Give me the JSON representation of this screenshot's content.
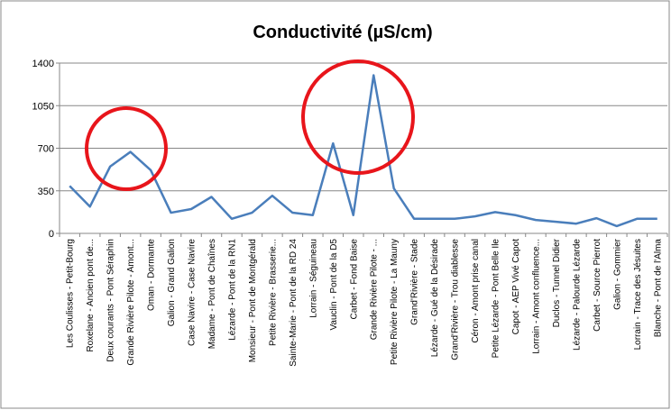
{
  "chart_data": {
    "type": "line",
    "title": "Conductivité (µS/cm)",
    "categories": [
      "Les Coulisses - Petit-Bourg",
      "Roxelane - Ancien pont de...",
      "Deux courants - Pont Séraphin",
      "Grande Rivière Pilote - Amont...",
      "Oman - Dormante",
      "Galion - Grand Galion",
      "Case Navire - Case Navire",
      "Madame - Pont de Chaînes",
      "Lézarde - Pont de la RN1",
      "Monsieur - Pont de Montgérald",
      "Petite Rivière - Brasserie...",
      "Sainte-Marie - Pont de la RD 24",
      "Lorrain - Séguineau",
      "Vauclin - Pont de la D5",
      "Carbet - Fond Baise",
      "Grande Rivière Pilote - ...",
      "Petite Rivière Pilote - La Mauny",
      "Grand'Rivière - Stade",
      "Lézarde - Gué de la Désirade",
      "Grand'Rivière - Trou diablesse",
      "Céron - Amont prise canal",
      "Petite Lézarde - Pont Belle Ile",
      "Capot - AEP Vivé Capot",
      "Lorrain - Amont confluence...",
      "Duclos - Tunnel Didier",
      "Lézarde - Palourde Lézarde",
      "Carbet - Source Pierrot",
      "Galion - Gommier",
      "Lorrain - Trace des Jésuites",
      "Blanche - Pont de l'Alma"
    ],
    "values": [
      390,
      220,
      550,
      670,
      520,
      170,
      200,
      300,
      120,
      170,
      310,
      170,
      150,
      740,
      150,
      1300,
      370,
      120,
      120,
      120,
      140,
      175,
      150,
      110,
      95,
      80,
      125,
      60,
      120,
      120
    ],
    "color": "#4a7ebb",
    "ylim": [
      0,
      1400
    ],
    "yticks": [
      0,
      350,
      700,
      1050,
      1400
    ],
    "grid": true
  }
}
